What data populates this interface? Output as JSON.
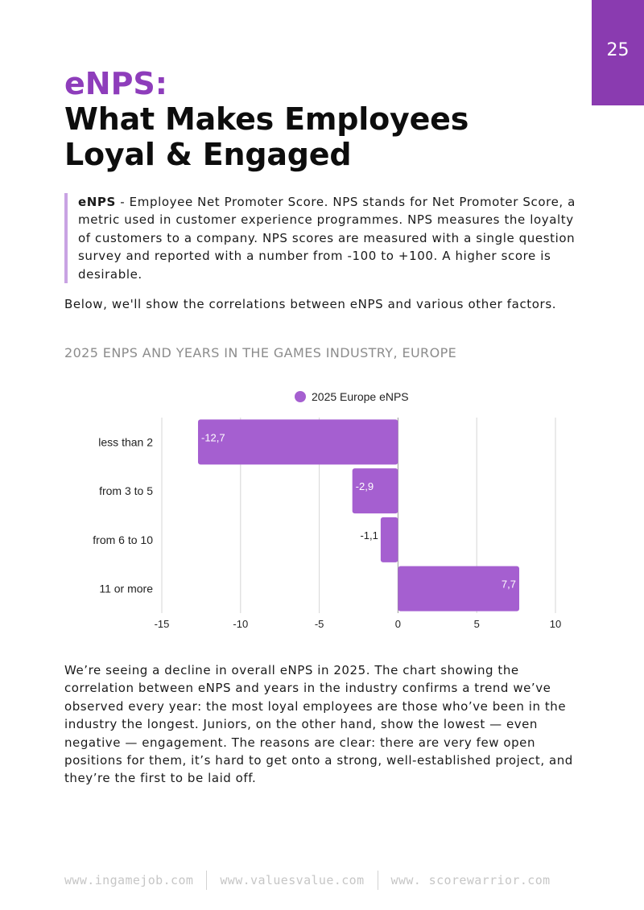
{
  "page": {
    "number": "25"
  },
  "title": {
    "accent": "eNPS:",
    "main": "What Makes Employees Loyal & Engaged"
  },
  "definition": {
    "term": "eNPS",
    "text": " - Employee Net Promoter Score. NPS stands for Net Promoter Score, a metric used in customer experience programmes. NPS measures the loyalty of customers to a company. NPS scores are measured with a single question survey and reported with a number from -100 to +100. A higher score is desirable."
  },
  "intro": "Below, we'll show the correlations between eNPS and various other factors.",
  "chart_heading": "2025 ENPS AND YEARS IN THE GAMES INDUSTRY, EUROPE",
  "colors": {
    "accent": "#8e3dbb",
    "bar": "#a55fd0",
    "tab": "#8a3bb0",
    "quote_bar": "#c9a3e3"
  },
  "chart_data": {
    "type": "bar",
    "orientation": "horizontal",
    "title": "2025 ENPS AND YEARS IN THE GAMES INDUSTRY, EUROPE",
    "legend": "2025 Europe eNPS",
    "categories": [
      "less than 2",
      "from 3 to 5",
      "from 6 to 10",
      "11 or more"
    ],
    "series": [
      {
        "name": "2025 Europe eNPS",
        "values": [
          -12.7,
          -2.9,
          -1.1,
          7.7
        ],
        "labels": [
          "-12,7",
          "-2,9",
          "-1,1",
          "7,7"
        ]
      }
    ],
    "xlim": [
      -15,
      10
    ],
    "xticks": [
      -15,
      -10,
      -5,
      0,
      5,
      10
    ],
    "xtick_labels": [
      "-15",
      "-10",
      "-5",
      "0",
      "5",
      "10"
    ],
    "grid": true
  },
  "body_text": "We’re seeing a decline in overall eNPS in 2025. The chart showing the correlation between eNPS and years in the industry confirms a trend we’ve observed every year: the most loyal employees are those who’ve been in the industry the longest. Juniors, on the other hand, show the lowest — even negative — engagement. The reasons are clear: there are very few open positions for them, it’s hard to get onto a strong, well-established project, and they’re the first to be laid off.",
  "footer": {
    "links": [
      "www.ingamejob.com",
      "www.valuesvalue.com",
      "www. scorewarrior.com"
    ]
  }
}
